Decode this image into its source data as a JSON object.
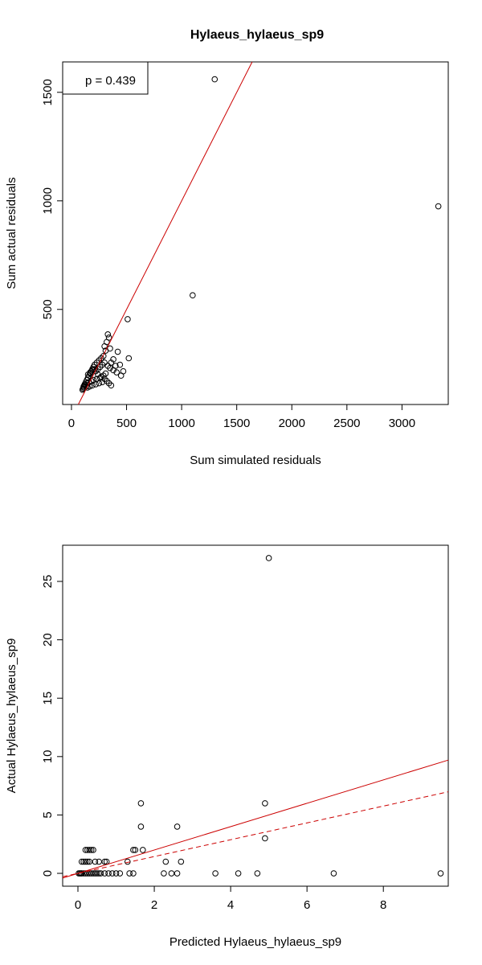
{
  "chart_data": [
    {
      "type": "scatter",
      "title": "Hylaeus_hylaeus_sp9",
      "xlabel": "Sum simulated residuals",
      "ylabel": "Sum actual residuals",
      "xlim": [
        -80,
        3420
      ],
      "ylim": [
        62,
        1640
      ],
      "xticks": [
        0,
        500,
        1000,
        1500,
        2000,
        2500,
        3000
      ],
      "yticks": [
        500,
        1000,
        1500
      ],
      "legend": {
        "text": "p = 0.439",
        "position": "top-left"
      },
      "line_color": "#cc0000",
      "fit_line": {
        "slope": 1.0,
        "intercept": 0
      },
      "points": {
        "x": [
          1300,
          3330,
          1100,
          510,
          330,
          340,
          320,
          300,
          350,
          310,
          420,
          520,
          380,
          360,
          440,
          400,
          290,
          270,
          250,
          230,
          210,
          200,
          190,
          180,
          170,
          160,
          150,
          140,
          130,
          120,
          115,
          110,
          105,
          100,
          260,
          240,
          220,
          280,
          300,
          330,
          350,
          380,
          410,
          450,
          470,
          310,
          290,
          260,
          230,
          200,
          180,
          160,
          140,
          125,
          110,
          150,
          170,
          190,
          210,
          240,
          270,
          300,
          320,
          340,
          360,
          280,
          250,
          220,
          190,
          165,
          145,
          135,
          120
        ],
        "y": [
          1560,
          975,
          565,
          455,
          385,
          370,
          350,
          330,
          320,
          310,
          305,
          275,
          270,
          255,
          245,
          240,
          285,
          275,
          265,
          255,
          245,
          235,
          225,
          215,
          205,
          195,
          185,
          175,
          165,
          155,
          145,
          140,
          135,
          130,
          235,
          225,
          215,
          245,
          255,
          240,
          230,
          220,
          210,
          195,
          215,
          205,
          195,
          185,
          180,
          175,
          170,
          165,
          160,
          150,
          145,
          200,
          210,
          220,
          225,
          200,
          190,
          180,
          170,
          160,
          150,
          165,
          160,
          155,
          150,
          145,
          140,
          145,
          150
        ]
      }
    },
    {
      "type": "scatter",
      "title": "",
      "xlabel": "Predicted Hylaeus_hylaeus_sp9",
      "ylabel": "Actual Hylaeus_hylaeus_sp9",
      "xlim": [
        -0.4,
        9.7
      ],
      "ylim": [
        -1.1,
        28.1
      ],
      "xticks": [
        0,
        2,
        4,
        6,
        8
      ],
      "yticks": [
        0,
        5,
        10,
        15,
        20,
        25
      ],
      "line_color": "#cc0000",
      "fit_line_solid": {
        "slope": 1.0,
        "intercept": 0
      },
      "fit_line_dashed": {
        "slope": 0.72,
        "intercept": 0
      },
      "points": {
        "x": [
          5.0,
          1.65,
          1.65,
          4.9,
          2.6,
          4.9,
          1.45,
          1.5,
          1.7,
          0.2,
          0.25,
          0.3,
          0.35,
          0.4,
          0.1,
          0.15,
          0.2,
          0.25,
          0.3,
          0.45,
          0.55,
          0.7,
          0.75,
          1.3,
          2.3,
          2.7,
          0.05,
          0.1,
          0.15,
          0.2,
          0.25,
          0.3,
          0.35,
          0.4,
          0.45,
          0.5,
          0.55,
          0.6,
          0.7,
          0.8,
          0.9,
          1.0,
          1.1,
          1.35,
          1.45,
          2.25,
          2.45,
          2.6,
          3.6,
          4.2,
          4.7,
          6.7,
          9.5,
          0.02,
          0.08
        ],
        "y": [
          27,
          6,
          4,
          6,
          4,
          3,
          2,
          2,
          2,
          2,
          2,
          2,
          2,
          2,
          1,
          1,
          1,
          1,
          1,
          1,
          1,
          1,
          1,
          1,
          1,
          1,
          0,
          0,
          0,
          0,
          0,
          0,
          0,
          0,
          0,
          0,
          0,
          0,
          0,
          0,
          0,
          0,
          0,
          0,
          0,
          0,
          0,
          0,
          0,
          0,
          0,
          0,
          0,
          0,
          0
        ]
      }
    }
  ]
}
